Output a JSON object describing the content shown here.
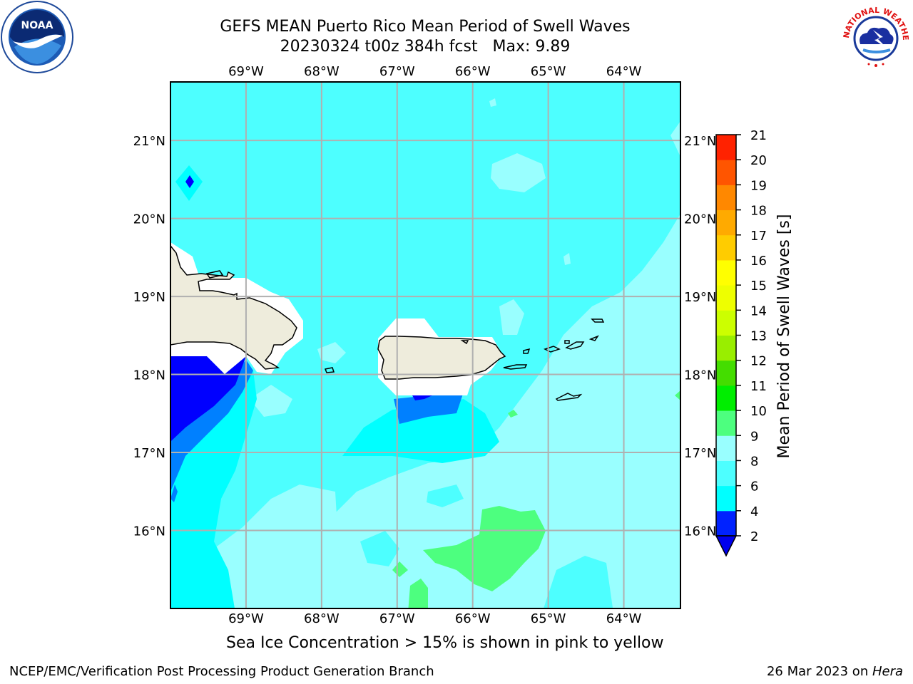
{
  "title": {
    "line1": "GEFS MEAN Puerto Rico Mean Period of Swell Waves",
    "line2": "20230324 t00z 384h fcst   Max: 9.89"
  },
  "logos": {
    "left": {
      "icon": "noaa-logo-icon",
      "text": "NOAA"
    },
    "right": {
      "icon": "nws-logo-icon",
      "text": "NATIONAL WEATHER SERVICE"
    }
  },
  "map": {
    "lon_ticks": [
      "69°W",
      "68°W",
      "67°W",
      "66°W",
      "65°W",
      "64°W"
    ],
    "lat_ticks": [
      "21°N",
      "20°N",
      "19°N",
      "18°N",
      "17°N",
      "16°N"
    ],
    "lon_values": [
      -69,
      -68,
      -67,
      -66,
      -65,
      -64
    ],
    "lat_values": [
      21,
      20,
      19,
      18,
      17,
      16
    ],
    "lon_range": [
      -70,
      -63.25
    ],
    "lat_range": [
      15,
      21.75
    ],
    "grid": true,
    "colors": {
      "ocean_base": "#4dffff",
      "land": "#eeecdc",
      "coast": "#000000"
    }
  },
  "colorbar": {
    "label": "Mean Period of Swell Waves [s]",
    "ticks": [
      "2",
      "4",
      "6",
      "8",
      "9",
      "10",
      "11",
      "12",
      "13",
      "14",
      "15",
      "16",
      "17",
      "18",
      "19",
      "20",
      "21"
    ],
    "colors": [
      "#0022ff",
      "#00ffff",
      "#4dffff",
      "#99ffff",
      "#4dff7f",
      "#00ee00",
      "#44dd00",
      "#99ee00",
      "#ccff00",
      "#eeff00",
      "#ffff00",
      "#ffcc00",
      "#ffaa00",
      "#ff8800",
      "#ff5500",
      "#ff2200",
      "#ff0000"
    ],
    "under_color": "#0000ee"
  },
  "note": "Sea Ice Concentration > 15% is shown in pink to yellow",
  "footer": {
    "left": "NCEP/EMC/Verification Post Processing Product Generation Branch",
    "date": "26 Mar 2023 on ",
    "host": "Hera"
  }
}
